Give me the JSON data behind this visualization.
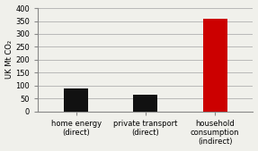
{
  "categories": [
    "home energy\n(direct)",
    "private transport\n(direct)",
    "household\nconsumption\n(indirect)"
  ],
  "values": [
    90,
    65,
    360
  ],
  "bar_colors": [
    "#111111",
    "#111111",
    "#cc0000"
  ],
  "ylabel": "UK Mt CO₂",
  "ylim": [
    0,
    400
  ],
  "yticks": [
    0,
    50,
    100,
    150,
    200,
    250,
    300,
    350,
    400
  ],
  "bar_width": 0.35,
  "background_color": "#f0f0eb",
  "grid_color": "#b0b0b0",
  "ylabel_fontsize": 6,
  "tick_fontsize": 6,
  "xlabel_fontsize": 6
}
